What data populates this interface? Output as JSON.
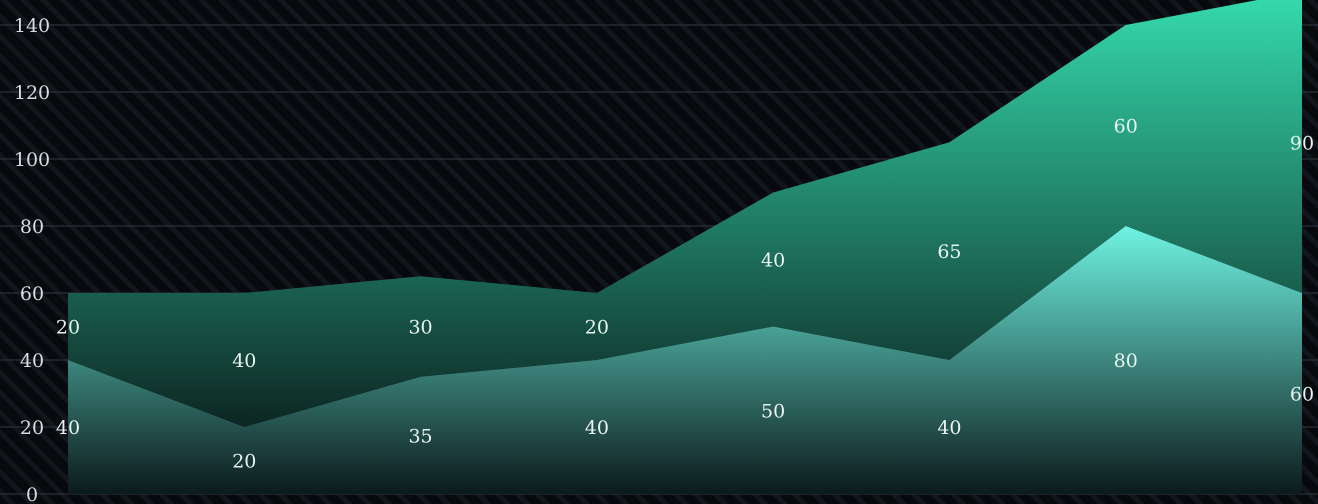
{
  "chart_data": {
    "type": "area",
    "stacked": true,
    "categories": [
      "",
      "",
      "",
      "",
      "",
      "",
      "",
      ""
    ],
    "series": [
      {
        "values": [
          40,
          20,
          35,
          40,
          50,
          40,
          80,
          60
        ]
      },
      {
        "values": [
          20,
          40,
          30,
          20,
          40,
          65,
          60,
          90
        ]
      }
    ],
    "y_ticks": [
      "0",
      "20",
      "40",
      "60",
      "80",
      "100",
      "120",
      "140"
    ],
    "ylim": [
      0,
      150
    ],
    "grid": true,
    "legend": "none",
    "colors": {
      "background": "#06090c",
      "lower_series_top": "#6ff3e2",
      "lower_series_bottom": "#0b1a1b",
      "upper_series_top": "#35dcae",
      "upper_series_bottom": "#0d2622",
      "grid": "#28313a",
      "tick_text": "#d7dde0",
      "label_text": "#e9f3f1"
    }
  }
}
